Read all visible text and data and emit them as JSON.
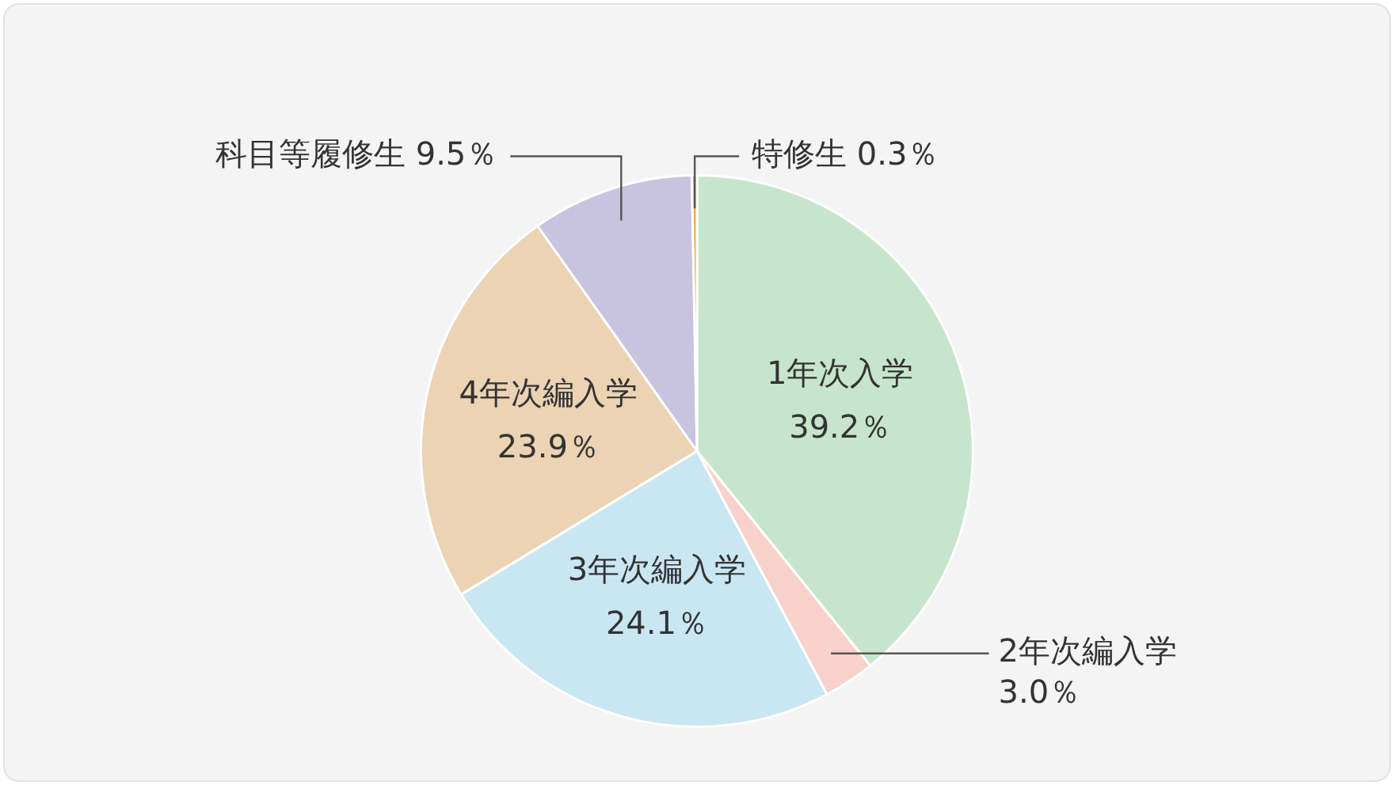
{
  "chart_data": {
    "type": "pie",
    "categories": [
      "1年次入学",
      "2年次編入学",
      "3年次編入学",
      "4年次編入学",
      "科目等履修生",
      "特修生"
    ],
    "values": [
      39.2,
      3.0,
      24.1,
      23.9,
      9.5,
      0.3
    ],
    "value_labels": [
      "39.2％",
      "3.0％",
      "24.1％",
      "23.9％",
      "9.5％",
      "0.3％"
    ],
    "colors": [
      "#c7e5cd",
      "#f8d2ca",
      "#c9e7f3",
      "#ebd3b3",
      "#c8c3df",
      "#f0b03c"
    ],
    "legend": false
  }
}
